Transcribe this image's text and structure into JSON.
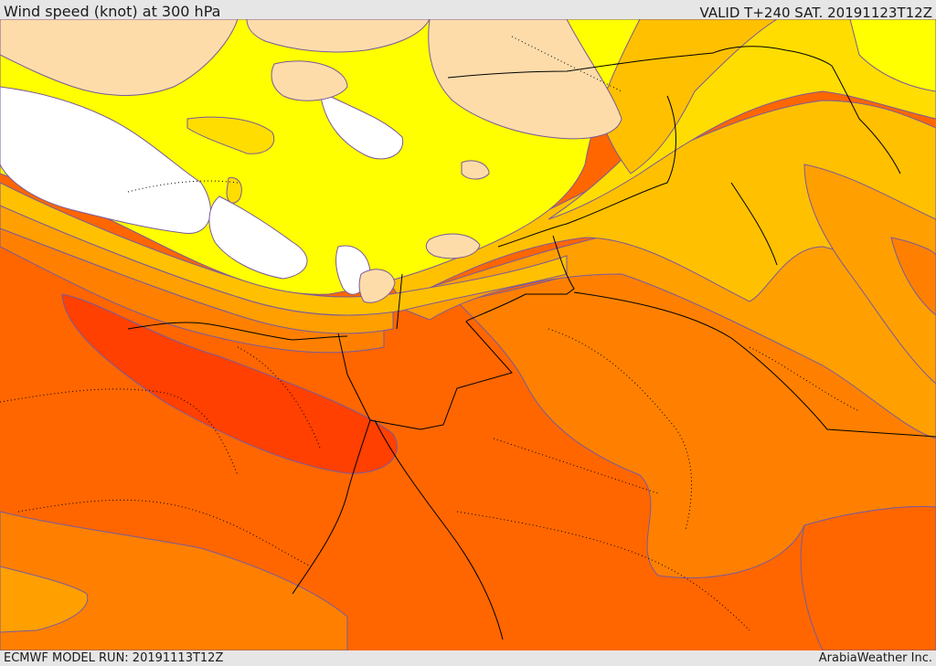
{
  "header": {
    "title": "Wind speed (knot) at 300 hPa",
    "valid": "VALID T+240 SAT. 20191123T12Z"
  },
  "footer": {
    "run": "ECMWF MODEL RUN: 20191113T12Z",
    "credit": "ArabiaWeather Inc."
  },
  "colors": {
    "band_white": "#ffffff",
    "band_yellow": "#ffff00",
    "band_gold": "#ffdd00",
    "band_amber": "#ffc000",
    "band_orange_light": "#ff9f00",
    "band_orange": "#ff8000",
    "band_orange_dark": "#ff6600",
    "band_red": "#ff4000",
    "land_tan": "#fedcaa",
    "contour": "#7a5a9a",
    "borders": "#000000"
  }
}
